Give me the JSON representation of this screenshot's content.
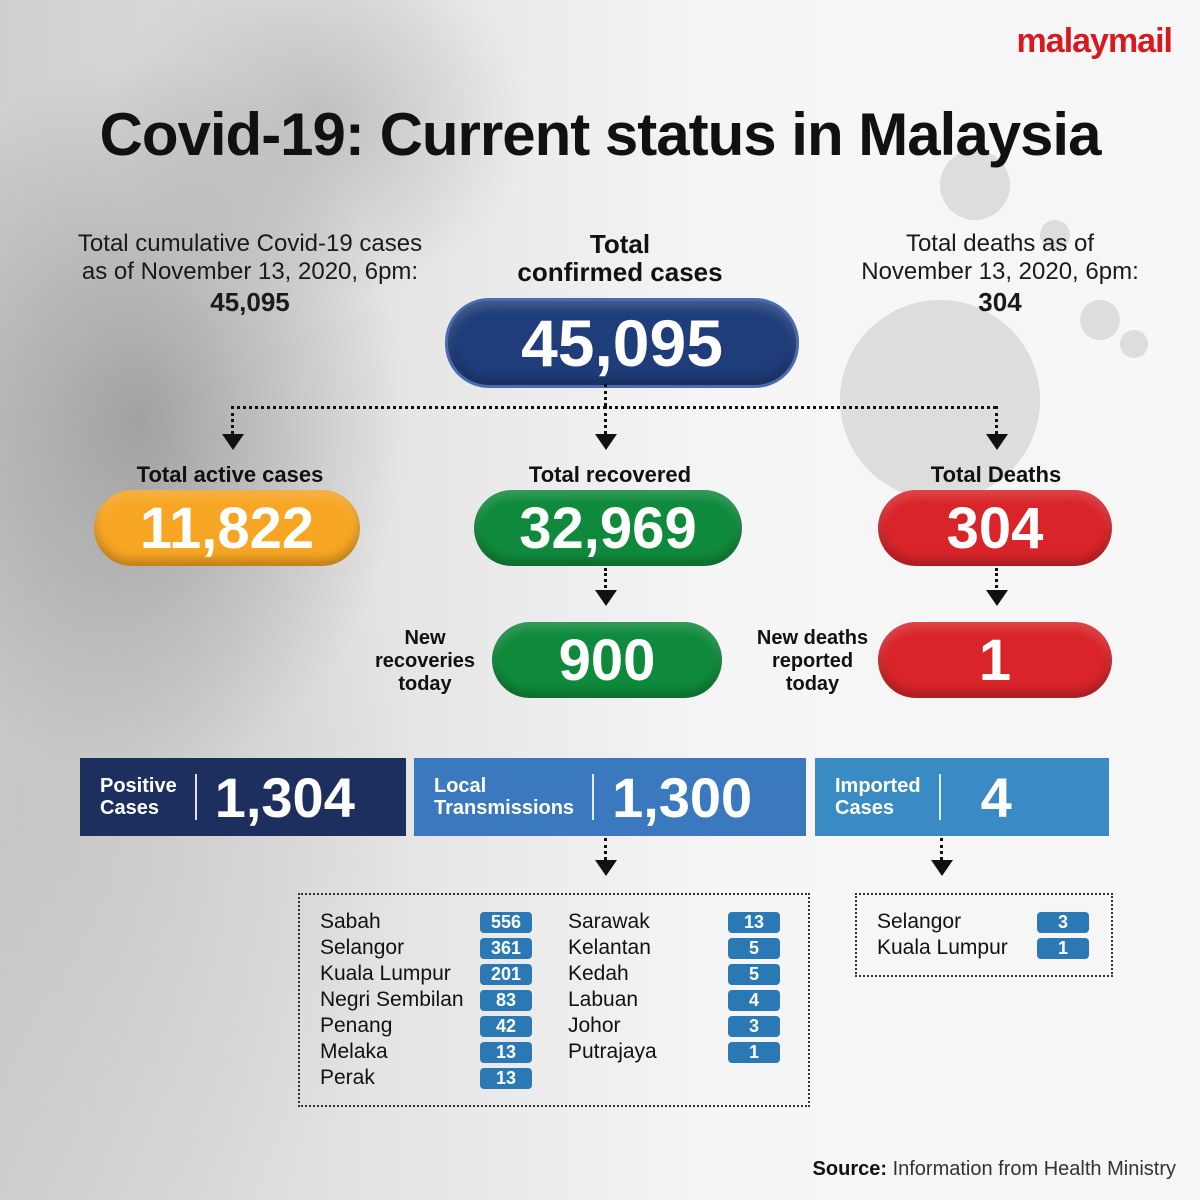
{
  "brand": {
    "logo": "malaymail",
    "logo_color": "#d71920"
  },
  "title": "Covid-19: Current status in Malaysia",
  "left_summary": {
    "line1": "Total cumulative Covid-19 cases",
    "line2": "as of November 13, 2020, 6pm:",
    "value": "45,095"
  },
  "right_summary": {
    "line1": "Total deaths as of",
    "line2": "November 13, 2020, 6pm:",
    "value": "304"
  },
  "confirmed": {
    "label_line1": "Total",
    "label_line2": "confirmed cases",
    "value": "45,095",
    "color": "#1f3d7a"
  },
  "active": {
    "label": "Total active cases",
    "value": "11,822",
    "color": "#f6a623"
  },
  "recovered": {
    "label": "Total recovered",
    "value": "32,969",
    "color": "#0f8a3c"
  },
  "deaths": {
    "label": "Total Deaths",
    "value": "304",
    "color": "#d9252a"
  },
  "new_recoveries": {
    "label_line1": "New",
    "label_line2": "recoveries",
    "label_line3": "today",
    "value": "900"
  },
  "new_deaths": {
    "label_line1": "New deaths",
    "label_line2": "reported",
    "label_line3": "today",
    "value": "1"
  },
  "bars": {
    "positive": {
      "label_line1": "Positive",
      "label_line2": "Cases",
      "value": "1,304",
      "color": "#1c2f5e"
    },
    "local": {
      "label_line1": "Local",
      "label_line2": "Transmissions",
      "value": "1,300",
      "color": "#3a79bd"
    },
    "imported": {
      "label_line1": "Imported",
      "label_line2": "Cases",
      "value": "4",
      "color": "#3a8ac4"
    }
  },
  "local_breakdown": {
    "col1": [
      {
        "state": "Sabah",
        "count": "556"
      },
      {
        "state": "Selangor",
        "count": "361"
      },
      {
        "state": "Kuala Lumpur",
        "count": "201"
      },
      {
        "state": "Negri Sembilan",
        "count": "83"
      },
      {
        "state": "Penang",
        "count": "42"
      },
      {
        "state": "Melaka",
        "count": "13"
      },
      {
        "state": "Perak",
        "count": "13"
      }
    ],
    "col2": [
      {
        "state": "Sarawak",
        "count": "13"
      },
      {
        "state": "Kelantan",
        "count": "5"
      },
      {
        "state": "Kedah",
        "count": "5"
      },
      {
        "state": "Labuan",
        "count": "4"
      },
      {
        "state": "Johor",
        "count": "3"
      },
      {
        "state": "Putrajaya",
        "count": "1"
      }
    ]
  },
  "imported_breakdown": [
    {
      "state": "Selangor",
      "count": "3"
    },
    {
      "state": "Kuala Lumpur",
      "count": "1"
    }
  ],
  "source": {
    "label": "Source:",
    "text": " Information from Health Ministry"
  }
}
